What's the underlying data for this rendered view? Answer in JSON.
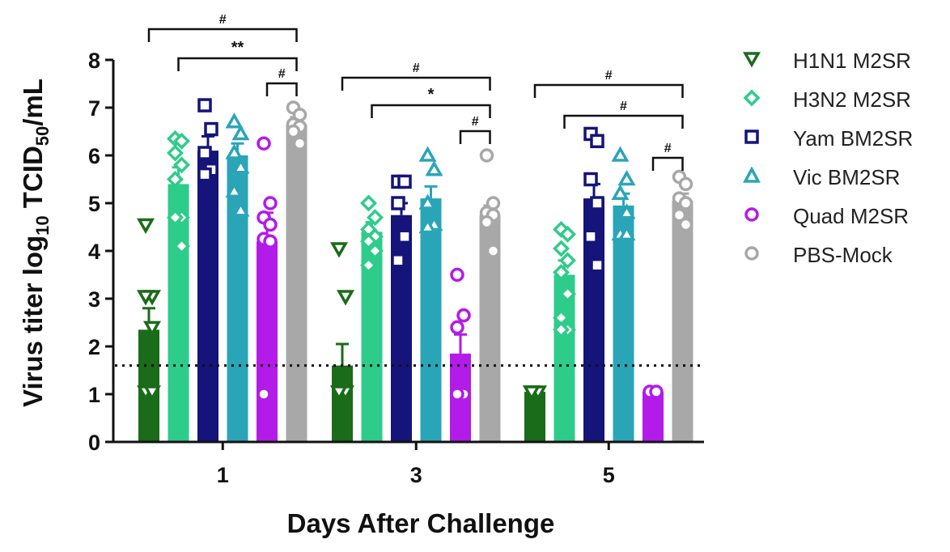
{
  "chart_data": {
    "type": "bar",
    "title": "",
    "xlabel": "Days After Challenge",
    "ylabel": {
      "prefix": "Virus titer log",
      "sub": "10",
      "mid": " TCID",
      "sub2": "50",
      "suffix": "/mL"
    },
    "categories": [
      "1",
      "3",
      "5"
    ],
    "ylim": [
      0,
      8
    ],
    "yticks": [
      "0",
      "1",
      "2",
      "3",
      "4",
      "5",
      "6",
      "7",
      "8"
    ],
    "detection_limit": 1.6,
    "series": [
      {
        "name": "H1N1 M2SR",
        "color": "#1a6b1a",
        "marker": "triangle-down",
        "values": [
          2.35,
          1.6,
          1.05
        ],
        "errors": [
          0.45,
          0.45,
          0
        ],
        "points": [
          [
            4.55,
            3.05,
            3.05,
            2.4,
            1.05,
            1.05
          ],
          [
            4.05,
            3.05,
            1.05,
            1.05,
            1.05
          ],
          [
            1.05,
            1.05,
            1.05
          ]
        ]
      },
      {
        "name": "H3N2 M2SR",
        "color": "#2ecc8a",
        "marker": "diamond",
        "values": [
          5.4,
          4.4,
          3.5
        ],
        "errors": [
          0.35,
          0.2,
          0.3
        ],
        "points": [
          [
            6.35,
            6.3,
            6.05,
            5.8,
            5.5,
            4.7,
            4.7,
            4.1
          ],
          [
            5.0,
            4.7,
            4.45,
            4.3,
            4.2,
            4.0,
            3.7
          ],
          [
            4.45,
            4.35,
            4.05,
            3.8,
            3.55,
            3.1,
            2.6,
            2.35,
            2.35
          ]
        ]
      },
      {
        "name": "Yam BM2SR",
        "color": "#14147a",
        "marker": "square",
        "values": [
          6.1,
          4.75,
          5.1
        ],
        "errors": [
          0.3,
          0.25,
          0.3
        ],
        "points": [
          [
            7.05,
            6.55,
            6.05,
            5.7,
            5.6
          ],
          [
            5.45,
            5.45,
            5.0,
            4.3,
            3.8
          ],
          [
            6.45,
            6.3,
            5.5,
            5.0,
            4.3,
            3.7
          ]
        ]
      },
      {
        "name": "Vic BM2SR",
        "color": "#2aa5b8",
        "marker": "triangle",
        "values": [
          6.0,
          5.1,
          4.95
        ],
        "errors": [
          0.25,
          0.25,
          0.25
        ],
        "points": [
          [
            6.7,
            6.45,
            6.05,
            5.75,
            5.25,
            4.85
          ],
          [
            6.0,
            5.7,
            5.0,
            4.55,
            4.5
          ],
          [
            6.0,
            5.5,
            5.2,
            4.8,
            4.35,
            4.35
          ]
        ]
      },
      {
        "name": "Quad M2SR",
        "color": "#b31be8",
        "marker": "circle",
        "values": [
          4.2,
          1.85,
          1.05
        ],
        "errors": [
          0.6,
          0.4,
          0
        ],
        "points": [
          [
            6.25,
            5.0,
            4.7,
            4.55,
            4.25,
            4.2,
            1.0
          ],
          [
            3.5,
            2.65,
            2.4,
            1.0,
            1.0
          ],
          [
            1.05,
            1.05
          ]
        ]
      },
      {
        "name": "PBS-Mock",
        "color": "#a8a8a8",
        "marker": "circle",
        "values": [
          6.65,
          4.75,
          5.05
        ],
        "errors": [
          0.15,
          0.2,
          0.15
        ],
        "points": [
          [
            7.0,
            6.85,
            6.65,
            6.6,
            6.5,
            6.25
          ],
          [
            6.0,
            5.0,
            4.8,
            4.75,
            4.6,
            4.0
          ],
          [
            5.55,
            5.4,
            5.1,
            5.0,
            4.75,
            4.55
          ]
        ]
      }
    ],
    "significance": [
      {
        "day": 0,
        "from": 0,
        "to": 5,
        "label": "#"
      },
      {
        "day": 0,
        "from": 1,
        "to": 5,
        "label": "**"
      },
      {
        "day": 0,
        "from": 4,
        "to": 5,
        "label": "#"
      },
      {
        "day": 1,
        "from": 0,
        "to": 5,
        "label": "#"
      },
      {
        "day": 1,
        "from": 1,
        "to": 5,
        "label": "*"
      },
      {
        "day": 1,
        "from": 4,
        "to": 5,
        "label": "#"
      },
      {
        "day": 2,
        "from": 0,
        "to": 5,
        "label": "#"
      },
      {
        "day": 2,
        "from": 1,
        "to": 5,
        "label": "#"
      },
      {
        "day": 2,
        "from": 4,
        "to": 5,
        "label": "#"
      }
    ]
  }
}
